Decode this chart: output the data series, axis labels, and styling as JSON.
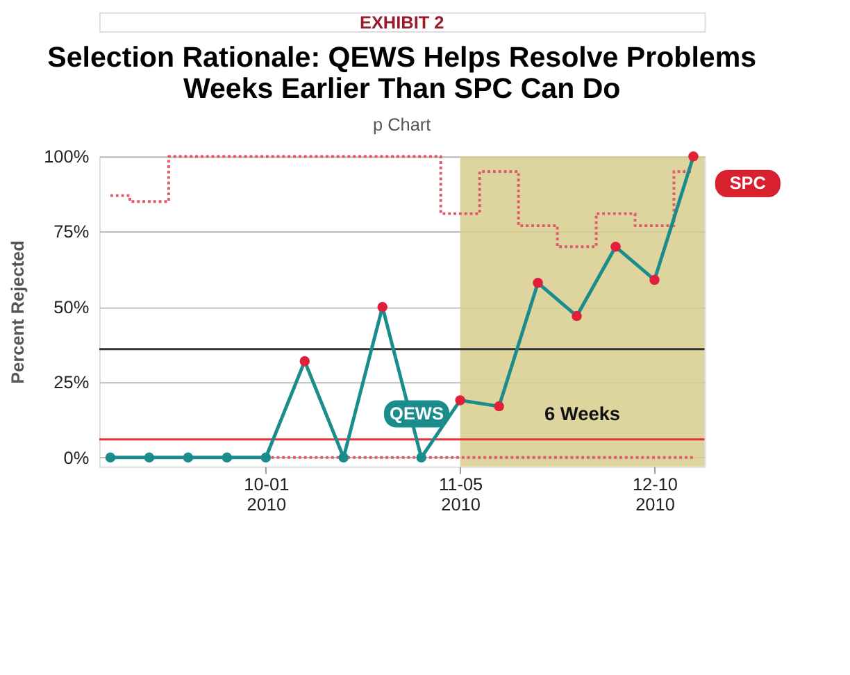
{
  "chart_data": {
    "type": "line",
    "title": "Selection Rationale: QEWS Helps Resolve Problems\nWeeks Earlier Than SPC Can Do",
    "subtitle": "p Chart",
    "ylabel": "Percent Rejected",
    "x": [
      "2010-09-03",
      "2010-09-10",
      "2010-09-17",
      "2010-09-24",
      "2010-10-01",
      "2010-10-08",
      "2010-10-15",
      "2010-10-22",
      "2010-10-29",
      "2010-11-05",
      "2010-11-12",
      "2010-11-19",
      "2010-11-26",
      "2010-12-03",
      "2010-12-10",
      "2010-12-17"
    ],
    "series": [
      {
        "type": "step",
        "color": "#e05a6a",
        "line_style": "dotted",
        "marker": "none",
        "values": [
          87,
          85,
          100,
          100,
          100,
          100,
          100,
          100,
          100,
          81,
          95,
          77,
          70,
          81,
          77,
          95
        ]
      },
      {
        "type": "step",
        "color": "#e05a6a",
        "line_style": "dotted",
        "marker": "none",
        "values": [
          null,
          null,
          null,
          null,
          0,
          0,
          0,
          0,
          0,
          0,
          0,
          0,
          0,
          0,
          0,
          0
        ]
      },
      {
        "color": "#1a8c8c",
        "marker": "circle",
        "line_style": "solid",
        "colors": [
          "#1a8c8c",
          "#1a8c8c",
          "#1a8c8c",
          "#1a8c8c",
          "#1a8c8c",
          "#e0203a",
          "#1a8c8c",
          "#e0203a",
          "#1a8c8c",
          "#e0203a",
          "#e0203a",
          "#e0203a",
          "#e0203a",
          "#e0203a",
          "#e0203a",
          "#e0203a"
        ],
        "values": [
          0,
          0,
          0,
          0,
          0,
          32,
          0,
          50,
          0,
          19,
          17,
          58,
          47,
          70,
          59,
          100
        ]
      }
    ],
    "xlim": [
      "2010-09-01",
      "2010-12-19"
    ],
    "xticks": [
      {
        "value": "2010-10-01",
        "label": "10-01\n2010"
      },
      {
        "value": "2010-11-05",
        "label": "11-05\n2010"
      },
      {
        "value": "2010-12-10",
        "label": "12-10\n2010"
      }
    ],
    "ylim": [
      -3,
      100
    ],
    "yticks": [
      {
        "value": 0,
        "label": "0%"
      },
      {
        "value": 25,
        "label": "25%"
      },
      {
        "value": 50,
        "label": "50%"
      },
      {
        "value": 75,
        "label": "75%"
      },
      {
        "value": 100,
        "label": "100%"
      }
    ],
    "grid": "y",
    "ref_lines": [
      {
        "axis": "y",
        "value": 36,
        "color": "#333333"
      },
      {
        "axis": "y",
        "value": 6,
        "color": "#e8303a"
      }
    ],
    "bands": [
      {
        "axis": "x",
        "from": "2010-11-05",
        "to": "2010-12-19",
        "label": "6 Weeks",
        "color": "#d8cc8c"
      }
    ],
    "annotations": [
      "EXHIBIT 2",
      {
        "text": "QEWS",
        "x": "2010-11-05",
        "y": 19
      },
      {
        "text": "SPC",
        "x": "2010-12-17",
        "y": 100
      }
    ]
  }
}
